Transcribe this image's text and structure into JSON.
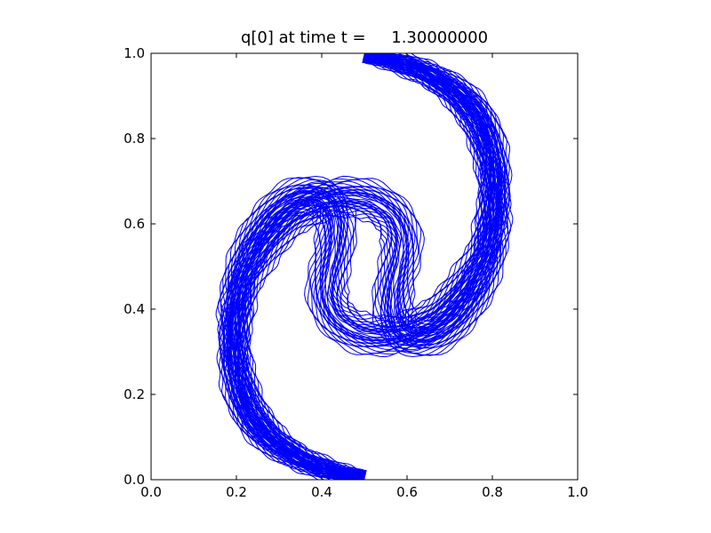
{
  "chart_data": {
    "type": "contour",
    "title": "q[0] at time t =     1.30000000",
    "xlabel": "",
    "ylabel": "",
    "xlim": [
      0.0,
      1.0
    ],
    "ylim": [
      0.0,
      1.0
    ],
    "x_ticks": [
      "0.0",
      "0.2",
      "0.4",
      "0.6",
      "0.8",
      "1.0"
    ],
    "y_ticks": [
      "0.0",
      "0.2",
      "0.4",
      "0.6",
      "0.8",
      "1.0"
    ],
    "grid": false,
    "legend": "none",
    "line_color": "#0000ff",
    "spine_color": "#000000",
    "contour_levels": 18,
    "arms": [
      {
        "name": "",
        "centerline": [
          [
            0.5,
            0.005
          ],
          [
            0.44,
            0.02
          ],
          [
            0.36,
            0.05
          ],
          [
            0.29,
            0.1
          ],
          [
            0.24,
            0.17
          ],
          [
            0.21,
            0.25
          ],
          [
            0.195,
            0.33
          ],
          [
            0.195,
            0.41
          ],
          [
            0.21,
            0.49
          ],
          [
            0.24,
            0.56
          ],
          [
            0.28,
            0.62
          ],
          [
            0.33,
            0.66
          ],
          [
            0.38,
            0.67
          ],
          [
            0.42,
            0.65
          ],
          [
            0.435,
            0.6
          ],
          [
            0.43,
            0.54
          ],
          [
            0.415,
            0.48
          ],
          [
            0.41,
            0.43
          ],
          [
            0.43,
            0.38
          ],
          [
            0.48,
            0.345
          ],
          [
            0.54,
            0.335
          ],
          [
            0.6,
            0.345
          ],
          [
            0.67,
            0.38
          ],
          [
            0.73,
            0.45
          ],
          [
            0.78,
            0.53
          ],
          [
            0.8,
            0.62
          ],
          [
            0.81,
            0.71
          ],
          [
            0.8,
            0.8
          ],
          [
            0.77,
            0.87
          ],
          [
            0.72,
            0.92
          ],
          [
            0.65,
            0.96
          ],
          [
            0.58,
            0.985
          ],
          [
            0.5,
            0.995
          ]
        ],
        "core_halfwidth": 0.022,
        "outer_halfwidth": 0.048
      }
    ]
  }
}
